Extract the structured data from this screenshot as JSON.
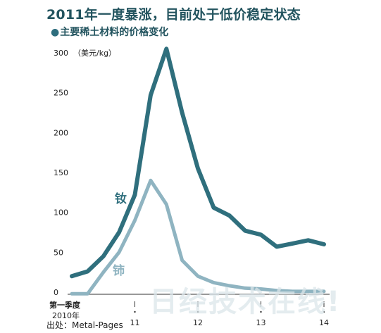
{
  "title": "2011年一度暴涨，目前处于低价稳定状态",
  "subtitle": "主要稀土材料的价格变化",
  "source": "出处：Metal-Pages",
  "watermark": "日经技术在线!",
  "colors": {
    "nd": "#2f6f7d",
    "ce": "#8fb4c1",
    "text_dark": "#23545f"
  },
  "chart_data": {
    "type": "line",
    "ylabel": "（美元/kg）",
    "ylim": [
      0,
      300
    ],
    "yticks": [
      0,
      50,
      100,
      150,
      200,
      250,
      300
    ],
    "xlim": [
      0,
      16
    ],
    "x_ticks": [
      {
        "x": 0,
        "label": "第一季度",
        "sublabel": "2010年"
      },
      {
        "x": 4,
        "label": "11"
      },
      {
        "x": 8,
        "label": "12"
      },
      {
        "x": 12,
        "label": "13"
      },
      {
        "x": 16,
        "label": "14"
      }
    ],
    "series": [
      {
        "name": "钕",
        "color": "#2f6f7d",
        "x": [
          0,
          1,
          2,
          3,
          4,
          5,
          6,
          7,
          8,
          9,
          10,
          11,
          12,
          13,
          14,
          15,
          16
        ],
        "values": [
          20,
          26,
          45,
          75,
          122,
          247,
          305,
          225,
          155,
          106,
          96,
          77,
          72,
          57,
          61,
          65,
          60
        ]
      },
      {
        "name": "铈",
        "color": "#8fb4c1",
        "x": [
          0,
          1,
          2,
          3,
          4,
          5,
          6,
          7,
          8,
          9,
          10,
          11,
          12,
          13,
          14,
          15,
          16
        ],
        "values": [
          -2,
          -2,
          25,
          50,
          90,
          140,
          110,
          40,
          20,
          12,
          8,
          5,
          4,
          2,
          1,
          1,
          1
        ]
      }
    ]
  }
}
